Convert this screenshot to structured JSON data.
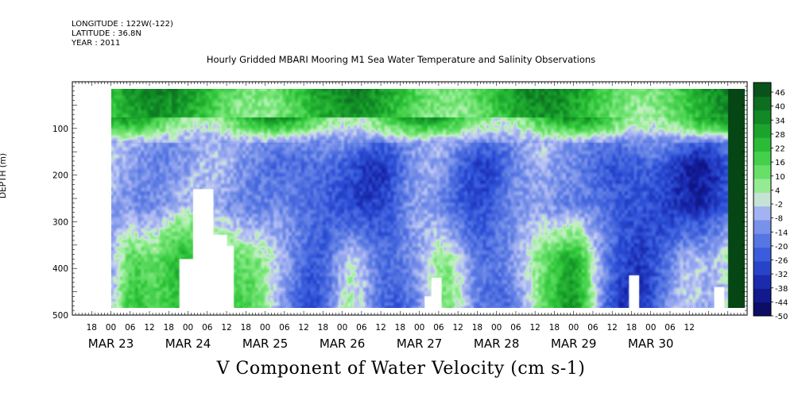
{
  "header": {
    "longitude": "LONGITUDE : 122W(-122)",
    "latitude": "LATITUDE : 36.8N",
    "year": "YEAR : 2011"
  },
  "chart_data": {
    "type": "heatmap",
    "title": "Hourly Gridded MBARI Mooring M1 Sea Water Temperature and Salinity Observations",
    "xlabel": "V Component of Water Velocity (cm s-1)",
    "ylabel": "DEPTH (m)",
    "ylim": [
      500,
      0
    ],
    "y_ticks": [
      100,
      200,
      300,
      400,
      500
    ],
    "x_range_hours": [
      "MAR 22 12:00",
      "MAR 30 18:00"
    ],
    "x_hour_labels": [
      "18",
      "00",
      "06",
      "12",
      "18",
      "00",
      "06",
      "12",
      "18",
      "00",
      "06",
      "12",
      "18",
      "00",
      "06",
      "12",
      "18",
      "00",
      "06",
      "12",
      "18",
      "00",
      "06",
      "12",
      "18",
      "00",
      "06",
      "12",
      "18",
      "00",
      "06",
      "12"
    ],
    "x_date_labels": [
      "MAR 23",
      "MAR 24",
      "MAR 25",
      "MAR 26",
      "MAR 27",
      "MAR 28",
      "MAR 29",
      "MAR 30"
    ],
    "colorbar": {
      "labels": [
        "46",
        "40",
        "34",
        "28",
        "22",
        "16",
        "10",
        "4",
        "-2",
        "-8",
        "-14",
        "-20",
        "-26",
        "-32",
        "-38",
        "-44",
        "-50"
      ],
      "range": [
        -50,
        52
      ]
    },
    "data_extent": {
      "x_start": "MAR 23 00:00",
      "depth_top_m": 15,
      "depth_bottom_m": 485
    },
    "pattern": "Near-surface layer (15-80 m) strongly positive (green, 10 to 40 cm/s); below ~100 m mostly weakly negative (light blue, -2 to -20), with darker blue negative bands near MAR 25-26, MAR 26-27, MAR 28-29 and MAR 29-30, and green positive plumes near the bottom around MAR 23-25 and MAR 29.",
    "grid": false,
    "colorbar_placement": "right"
  }
}
